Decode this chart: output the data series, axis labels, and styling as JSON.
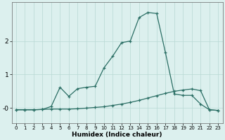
{
  "x": [
    0,
    1,
    2,
    3,
    4,
    5,
    6,
    7,
    8,
    9,
    10,
    11,
    12,
    13,
    14,
    15,
    16,
    17,
    18,
    19,
    20,
    21,
    22,
    23
  ],
  "line1": [
    -0.05,
    -0.05,
    -0.05,
    -0.04,
    0.05,
    0.62,
    0.35,
    0.58,
    0.62,
    0.65,
    1.2,
    1.55,
    1.95,
    2.0,
    2.7,
    2.85,
    2.82,
    1.65,
    0.42,
    0.38,
    0.38,
    0.12,
    -0.05,
    -0.07
  ],
  "line2": [
    -0.05,
    -0.05,
    -0.05,
    -0.04,
    -0.03,
    -0.03,
    -0.03,
    -0.02,
    0.0,
    0.02,
    0.04,
    0.08,
    0.12,
    0.17,
    0.23,
    0.3,
    0.37,
    0.44,
    0.5,
    0.54,
    0.57,
    0.52,
    -0.05,
    -0.07
  ],
  "color": "#2A6E64",
  "bg_color": "#DCF0EE",
  "grid_color": "#B8D8D4",
  "xlabel": "Humidex (Indice chaleur)",
  "xtick_labels": [
    "0",
    "1",
    "2",
    "3",
    "4",
    "5",
    "6",
    "7",
    "8",
    "9",
    "10",
    "11",
    "12",
    "13",
    "14",
    "15",
    "16",
    "17",
    "18",
    "19",
    "20",
    "21",
    "22",
    "23"
  ],
  "ytick_labels": [
    "-0",
    "1",
    "2"
  ],
  "ytick_vals": [
    0.0,
    1.0,
    2.0
  ],
  "xlim": [
    -0.5,
    23.5
  ],
  "ylim": [
    -0.45,
    3.15
  ]
}
